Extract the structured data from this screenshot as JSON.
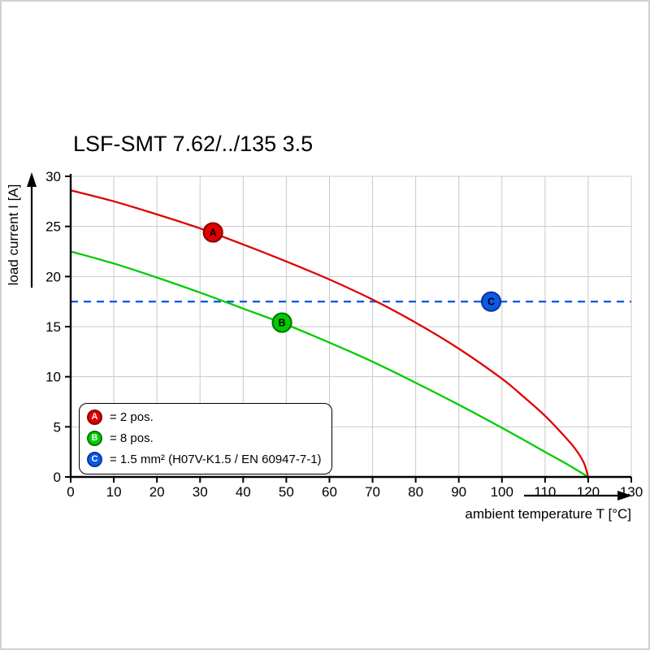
{
  "chart_data": {
    "type": "line",
    "title": "LSF-SMT 7.62/../135 3.5",
    "xlabel": "ambient temperature T [°C]",
    "ylabel": "load current I [A]",
    "xlim": [
      0,
      130
    ],
    "ylim": [
      0,
      30
    ],
    "x_ticks": [
      0,
      10,
      20,
      30,
      40,
      50,
      60,
      70,
      80,
      90,
      100,
      110,
      120,
      130
    ],
    "y_ticks": [
      0,
      5,
      10,
      15,
      20,
      25,
      30
    ],
    "grid": true,
    "legend_position": "inside-bottom-left",
    "colors": {
      "grid": "#c9c9c9",
      "axis": "#000000",
      "marker_text": "#ffffff"
    },
    "series": [
      {
        "name": "A",
        "label": "= 2 pos.",
        "color": "#e00000",
        "marker_ring": "#8f0000",
        "style": "solid",
        "marker_at": [
          33,
          24.4
        ],
        "points": [
          [
            0,
            28.6
          ],
          [
            10,
            27.5
          ],
          [
            20,
            26.2
          ],
          [
            30,
            24.8
          ],
          [
            40,
            23.2
          ],
          [
            50,
            21.5
          ],
          [
            60,
            19.7
          ],
          [
            70,
            17.7
          ],
          [
            80,
            15.4
          ],
          [
            90,
            12.8
          ],
          [
            100,
            9.8
          ],
          [
            105,
            8.0
          ],
          [
            110,
            6.1
          ],
          [
            114,
            4.3
          ],
          [
            117,
            2.8
          ],
          [
            119,
            1.4
          ],
          [
            120,
            0
          ]
        ]
      },
      {
        "name": "B",
        "label": "= 8 pos.",
        "color": "#00cc00",
        "marker_ring": "#007a00",
        "style": "solid",
        "marker_at": [
          49,
          15.4
        ],
        "points": [
          [
            0,
            22.5
          ],
          [
            10,
            21.3
          ],
          [
            20,
            19.9
          ],
          [
            30,
            18.4
          ],
          [
            40,
            16.8
          ],
          [
            50,
            15.2
          ],
          [
            60,
            13.4
          ],
          [
            70,
            11.5
          ],
          [
            80,
            9.4
          ],
          [
            90,
            7.2
          ],
          [
            100,
            4.9
          ],
          [
            110,
            2.5
          ],
          [
            115,
            1.3
          ],
          [
            120,
            0
          ]
        ]
      },
      {
        "name": "C",
        "label": "= 1.5 mm² (H07V-K1.5 / EN 60947-7-1)",
        "color": "#0d5ae6",
        "marker_ring": "#083a9a",
        "style": "dashed",
        "dash": "9 7",
        "marker_at": [
          97.5,
          17.5
        ],
        "points": [
          [
            0,
            17.5
          ],
          [
            130,
            17.5
          ]
        ]
      }
    ]
  }
}
